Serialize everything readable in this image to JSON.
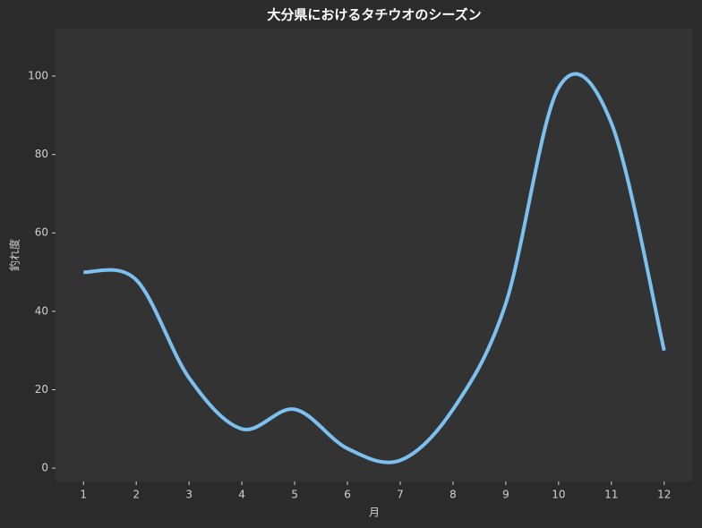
{
  "chart_data": {
    "type": "line",
    "title": "大分県におけるタチウオのシーズン",
    "x_label": "月",
    "y_label": "釣れ度",
    "x": [
      1,
      2,
      3,
      4,
      5,
      6,
      7,
      8,
      9,
      10,
      11,
      12
    ],
    "series": [
      {
        "name": "釣れ度",
        "color": "#7cc0f0",
        "values": [
          50,
          48,
          23,
          10,
          15,
          5,
          2,
          15,
          42,
          97,
          88,
          30
        ]
      }
    ],
    "xlim": [
      0.47,
      12.53
    ],
    "ylim": [
      -3.4,
      112.1
    ],
    "xticks": [
      1,
      2,
      3,
      4,
      5,
      6,
      7,
      8,
      9,
      10,
      11,
      12
    ],
    "yticks": [
      0,
      20,
      40,
      60,
      80,
      100
    ],
    "grid": false
  }
}
